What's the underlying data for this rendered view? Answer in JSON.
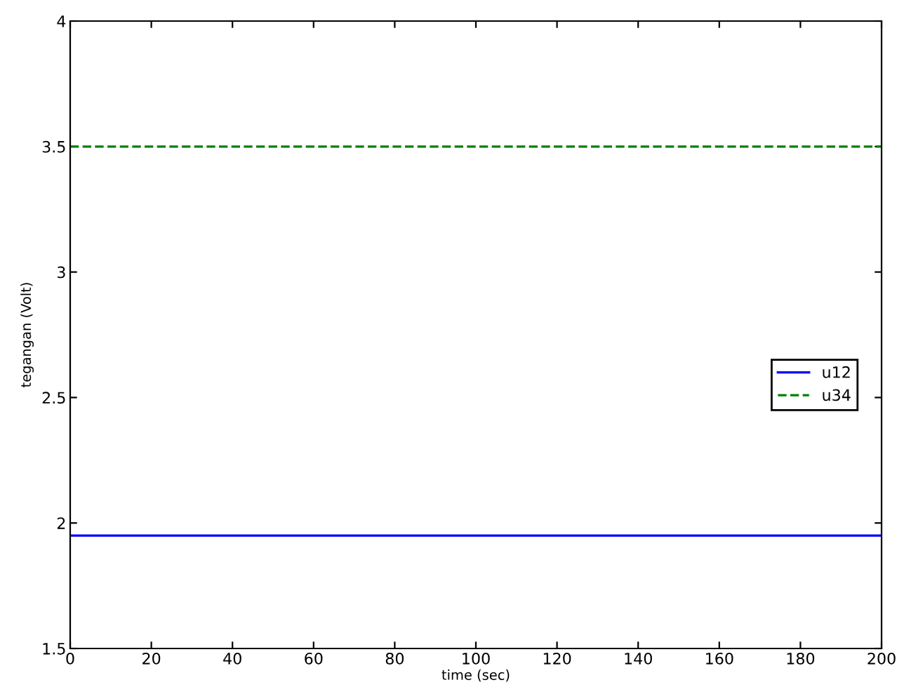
{
  "chart_data": {
    "type": "line",
    "xlabel": "time (sec)",
    "ylabel": "tegangan (Volt)",
    "x": [
      0,
      200
    ],
    "series": [
      {
        "name": "u12",
        "color": "#0000ff",
        "values": [
          1.95,
          1.95
        ],
        "line_style": "solid"
      },
      {
        "name": "u34",
        "color": "#008000",
        "values": [
          3.5,
          3.5
        ],
        "line_style": "dashed"
      }
    ],
    "xlim": [
      0,
      200
    ],
    "xticks": [
      0,
      20,
      40,
      60,
      80,
      100,
      120,
      140,
      160,
      180,
      200
    ],
    "ylim": [
      1.5,
      4
    ],
    "yticks": [
      1.5,
      2,
      2.5,
      3,
      3.5,
      4
    ],
    "grid": false,
    "legend": "right",
    "marker": "none"
  }
}
